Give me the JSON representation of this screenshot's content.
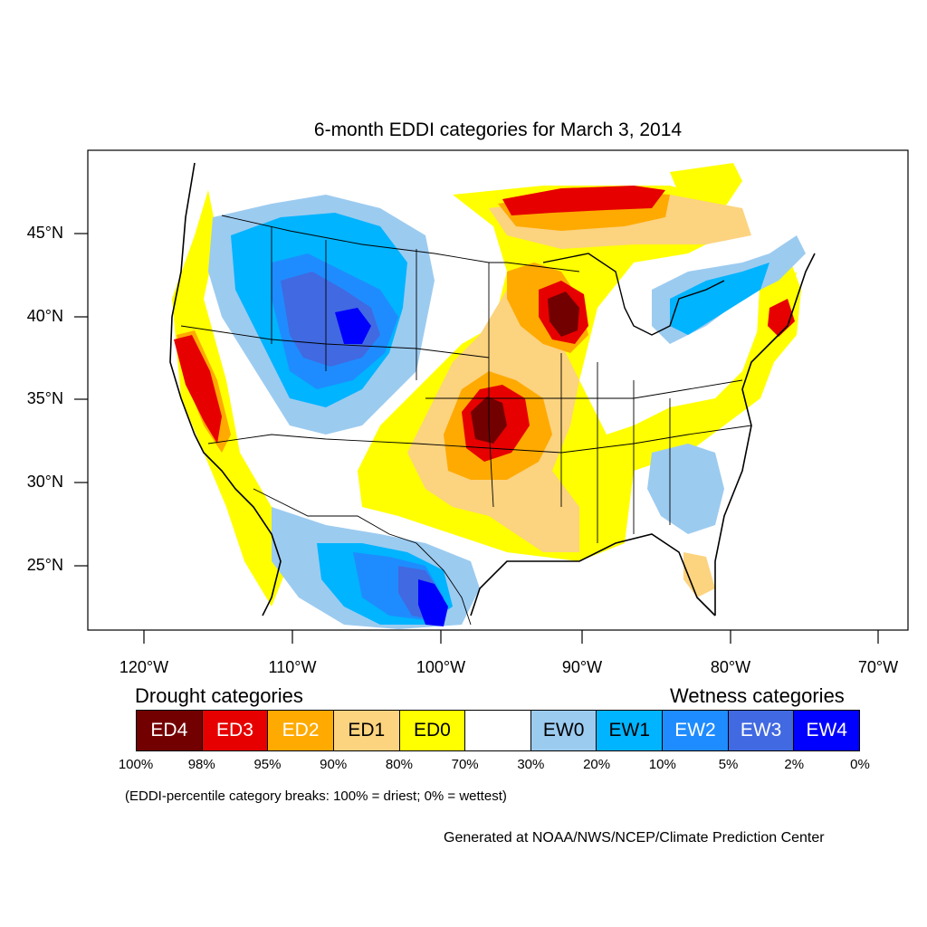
{
  "title": "6-month EDDI categories for March 3, 2014",
  "lat_labels": [
    "45°N",
    "40°N",
    "35°N",
    "30°N",
    "25°N"
  ],
  "lon_labels": [
    "120°W",
    "110°W",
    "100°W",
    "90°W",
    "80°W",
    "70°W"
  ],
  "legend": {
    "drought_heading": "Drought categories",
    "wetness_heading": "Wetness categories",
    "categories": [
      {
        "label": "ED4",
        "color": "#730000",
        "text_color": "#ffffff"
      },
      {
        "label": "ED3",
        "color": "#e60000",
        "text_color": "#ffffff"
      },
      {
        "label": "ED2",
        "color": "#ffaa00",
        "text_color": "#ffffff"
      },
      {
        "label": "ED1",
        "color": "#fcd37f",
        "text_color": "#000000"
      },
      {
        "label": "ED0",
        "color": "#ffff00",
        "text_color": "#000000"
      },
      {
        "label": "",
        "color": "#ffffff",
        "text_color": "#000000"
      },
      {
        "label": "EW0",
        "color": "#9ccbf0",
        "text_color": "#000000"
      },
      {
        "label": "EW1",
        "color": "#00b4ff",
        "text_color": "#000000"
      },
      {
        "label": "EW2",
        "color": "#1e8cff",
        "text_color": "#ffffff"
      },
      {
        "label": "EW3",
        "color": "#4169e1",
        "text_color": "#ffffff"
      },
      {
        "label": "EW4",
        "color": "#0000ff",
        "text_color": "#ffffff"
      }
    ],
    "percentiles": [
      "100%",
      "98%",
      "95%",
      "90%",
      "80%",
      "70%",
      "30%",
      "20%",
      "10%",
      "5%",
      "2%",
      "0%"
    ]
  },
  "breaks_note": "(EDDI-percentile category breaks: 100% = driest; 0% = wettest)",
  "credit": "Generated at NOAA/NWS/NCEP/Climate Prediction Center"
}
